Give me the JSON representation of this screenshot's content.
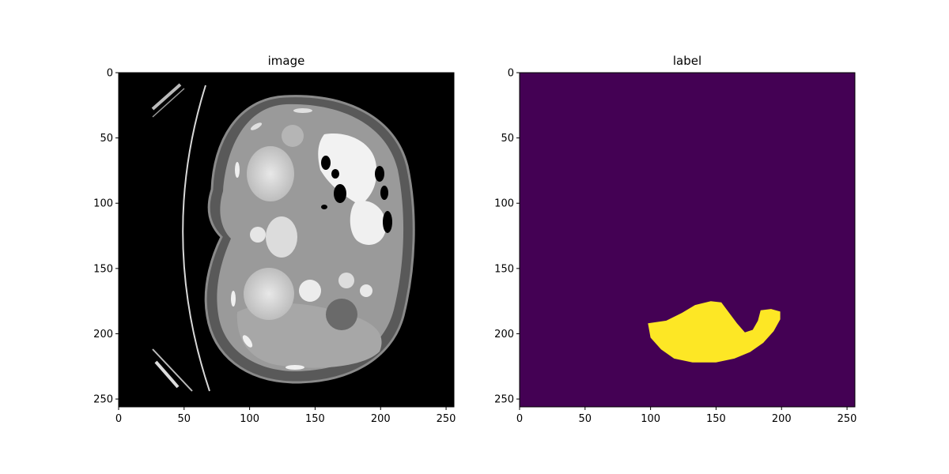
{
  "chart_data": [
    {
      "type": "heatmap",
      "title": "image",
      "colormap": "gray",
      "xlim": [
        0,
        256
      ],
      "ylim": [
        256,
        0
      ],
      "x_ticks": [
        "0",
        "50",
        "100",
        "150",
        "200",
        "250"
      ],
      "y_ticks": [
        "0",
        "50",
        "100",
        "150",
        "200",
        "250"
      ],
      "content": "axial CT slice"
    },
    {
      "type": "heatmap",
      "title": "label",
      "colormap": "viridis",
      "background_color": "#440154",
      "foreground_color": "#fde725",
      "xlim": [
        0,
        256
      ],
      "ylim": [
        256,
        0
      ],
      "x_ticks": [
        "0",
        "50",
        "100",
        "150",
        "200",
        "250"
      ],
      "y_ticks": [
        "0",
        "50",
        "100",
        "150",
        "200",
        "250"
      ],
      "mask_outline": [
        [
          98,
          192
        ],
        [
          112,
          190
        ],
        [
          124,
          184
        ],
        [
          134,
          178
        ],
        [
          146,
          175
        ],
        [
          154,
          176
        ],
        [
          160,
          184
        ],
        [
          166,
          192
        ],
        [
          172,
          199
        ],
        [
          178,
          197
        ],
        [
          182,
          190
        ],
        [
          184,
          182
        ],
        [
          192,
          181
        ],
        [
          199,
          183
        ],
        [
          199,
          189
        ],
        [
          194,
          198
        ],
        [
          186,
          207
        ],
        [
          176,
          214
        ],
        [
          164,
          219
        ],
        [
          150,
          222
        ],
        [
          132,
          222
        ],
        [
          118,
          219
        ],
        [
          108,
          212
        ],
        [
          100,
          203
        ]
      ]
    }
  ]
}
